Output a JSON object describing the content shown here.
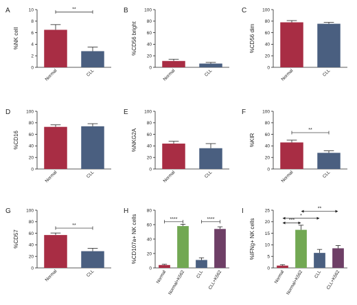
{
  "colors": {
    "normal": "#a82d44",
    "cll": "#4a5f80",
    "nk562": "#72a853",
    "cllk562": "#6e3f66"
  },
  "chart_data": [
    {
      "panel": "A",
      "type": "bar",
      "ylabel": "%NK cell",
      "categories": [
        "Normal",
        "CLL"
      ],
      "values": [
        6.5,
        2.8
      ],
      "errors": [
        0.9,
        0.7
      ],
      "ylim": [
        0,
        10
      ],
      "yticks": [
        0,
        2,
        4,
        6,
        8,
        10
      ],
      "colors": [
        "normal",
        "cll"
      ],
      "significance": [
        {
          "from": 0,
          "to": 1,
          "label": "**",
          "style": "bracket",
          "y": 9.6
        }
      ]
    },
    {
      "panel": "B",
      "type": "bar",
      "ylabel": "%CD56 bright",
      "categories": [
        "Normal",
        "CLL"
      ],
      "values": [
        11,
        6.5
      ],
      "errors": [
        3,
        2
      ],
      "ylim": [
        0,
        100
      ],
      "yticks": [
        0,
        20,
        40,
        60,
        80,
        100
      ],
      "colors": [
        "normal",
        "cll"
      ],
      "significance": []
    },
    {
      "panel": "C",
      "type": "bar",
      "ylabel": "%CD56 dim",
      "categories": [
        "Normal",
        "CLL"
      ],
      "values": [
        78,
        75.5
      ],
      "errors": [
        3,
        2.5
      ],
      "ylim": [
        0,
        100
      ],
      "yticks": [
        0,
        20,
        40,
        60,
        80,
        100
      ],
      "colors": [
        "normal",
        "cll"
      ],
      "significance": []
    },
    {
      "panel": "D",
      "type": "bar",
      "ylabel": "%CD16",
      "categories": [
        "Normal",
        "CLL"
      ],
      "values": [
        73,
        74
      ],
      "errors": [
        3.5,
        4.5
      ],
      "ylim": [
        0,
        100
      ],
      "yticks": [
        0,
        20,
        40,
        60,
        80,
        100
      ],
      "colors": [
        "normal",
        "cll"
      ],
      "significance": []
    },
    {
      "panel": "E",
      "type": "bar",
      "ylabel": "%NKG2A",
      "categories": [
        "Normal",
        "CLL"
      ],
      "values": [
        44,
        36
      ],
      "errors": [
        4,
        8
      ],
      "ylim": [
        0,
        100
      ],
      "yticks": [
        0,
        20,
        40,
        60,
        80,
        100
      ],
      "colors": [
        "normal",
        "cll"
      ],
      "significance": []
    },
    {
      "panel": "F",
      "type": "bar",
      "ylabel": "%KIR",
      "categories": [
        "Normal",
        "CLL"
      ],
      "values": [
        46,
        28
      ],
      "errors": [
        4,
        3.5
      ],
      "ylim": [
        0,
        100
      ],
      "yticks": [
        0,
        20,
        40,
        60,
        80,
        100
      ],
      "colors": [
        "normal",
        "cll"
      ],
      "significance": [
        {
          "from": 0,
          "to": 1,
          "label": "**",
          "style": "bracket",
          "y": 63
        }
      ]
    },
    {
      "panel": "G",
      "type": "bar",
      "ylabel": "%CD57",
      "categories": [
        "Normal",
        "CLL"
      ],
      "values": [
        57,
        29
      ],
      "errors": [
        3.5,
        5
      ],
      "ylim": [
        0,
        100
      ],
      "yticks": [
        0,
        20,
        40,
        60,
        80,
        100
      ],
      "colors": [
        "normal",
        "cll"
      ],
      "significance": [
        {
          "from": 0,
          "to": 1,
          "label": "**",
          "style": "bracket",
          "y": 69
        }
      ]
    },
    {
      "panel": "H",
      "type": "bar",
      "ylabel": "%CD107a+ NK cells",
      "categories": [
        "Normal",
        "Normal+K562",
        "CLL",
        "CLL+K562"
      ],
      "values": [
        4,
        58,
        11,
        54
      ],
      "errors": [
        1,
        2.5,
        3,
        3
      ],
      "ylim": [
        0,
        80
      ],
      "yticks": [
        0,
        20,
        40,
        60,
        80
      ],
      "colors": [
        "normal",
        "nk562",
        "cll",
        "cllk562"
      ],
      "significance": [
        {
          "from": 0,
          "to": 1,
          "label": "****",
          "style": "bracket",
          "y": 64
        },
        {
          "from": 2,
          "to": 3,
          "label": "****",
          "style": "bracket",
          "y": 64
        }
      ]
    },
    {
      "panel": "I",
      "type": "bar",
      "ylabel": "%IFNg+ NK cells",
      "categories": [
        "Normal",
        "Normal+K562",
        "CLL",
        "CLL+K562"
      ],
      "values": [
        1,
        16.5,
        6.5,
        8.5
      ],
      "errors": [
        0.4,
        2,
        1.5,
        1.2
      ],
      "ylim": [
        0,
        25
      ],
      "yticks": [
        0,
        5,
        10,
        15,
        20,
        25
      ],
      "colors": [
        "normal",
        "nk562",
        "cll",
        "cllk562"
      ],
      "significance": [
        {
          "from": 0,
          "to": 1,
          "label": "***",
          "style": "arrow",
          "y": 19.5
        },
        {
          "from": 0,
          "to": 2,
          "label": "*",
          "style": "arrow",
          "y": 21.5
        },
        {
          "from": 1,
          "to": 3,
          "label": "**",
          "style": "arrow",
          "y": 24.5
        }
      ]
    }
  ]
}
